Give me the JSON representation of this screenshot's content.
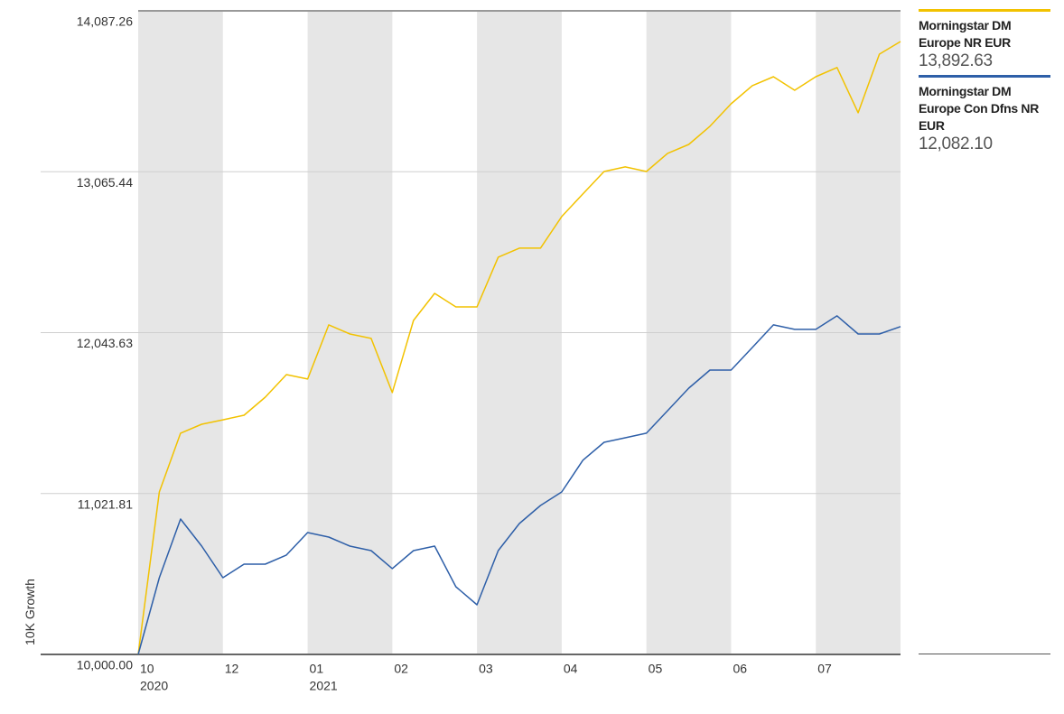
{
  "chart_data": {
    "type": "line",
    "y_axis_label": "10K Growth",
    "categories": [
      "10",
      null,
      null,
      null,
      "12",
      null,
      null,
      null,
      "01",
      null,
      null,
      null,
      "02",
      null,
      null,
      null,
      "03",
      null,
      null,
      null,
      "04",
      null,
      null,
      null,
      "05",
      null,
      null,
      null,
      "06",
      null,
      null,
      null,
      "07",
      null,
      null,
      null,
      null
    ],
    "year_labels": [
      "2020",
      null,
      null,
      null,
      null,
      null,
      null,
      null,
      "2021",
      null,
      null,
      null,
      null,
      null,
      null,
      null,
      null,
      null,
      null,
      null,
      null,
      null,
      null,
      null,
      null,
      null,
      null,
      null,
      null,
      null,
      null,
      null,
      null,
      null,
      null,
      null,
      null
    ],
    "series": [
      {
        "name": "Morningstar DM Europe NR EUR",
        "color": "#f2c200",
        "last_value_label": "13,892.63",
        "values": [
          10000,
          11032,
          11405,
          11462,
          11490,
          11519,
          11634,
          11777,
          11749,
          12093,
          12035,
          12007,
          11663,
          12121,
          12293,
          12207,
          12207,
          12523,
          12580,
          12580,
          12781,
          12924,
          13067,
          13096,
          13067,
          13182,
          13239,
          13354,
          13497,
          13612,
          13669,
          13583,
          13669,
          13727,
          13440,
          13812,
          13892.63
        ]
      },
      {
        "name": "Morningstar DM Europe Con Dfns NR EUR",
        "color": "#2e5fa8",
        "last_value_label": "12,082.10",
        "values": [
          10000,
          10487,
          10860,
          10688,
          10487,
          10573,
          10573,
          10631,
          10774,
          10745,
          10688,
          10659,
          10545,
          10659,
          10688,
          10430,
          10315,
          10659,
          10831,
          10946,
          11032,
          11233,
          11347,
          11376,
          11405,
          11548,
          11691,
          11806,
          11806,
          11949,
          12093,
          12064,
          12064,
          12150,
          12035,
          12035,
          12082.1
        ]
      }
    ],
    "ylim": [
      10000,
      14087.26
    ],
    "yticks": [
      {
        "value": 10000,
        "label": "10,000.00"
      },
      {
        "value": 11021.81,
        "label": "11,021.81"
      },
      {
        "value": 12043.63,
        "label": "12,043.63"
      },
      {
        "value": 13065.44,
        "label": "13,065.44"
      },
      {
        "value": 14087.26,
        "label": "14,087.26"
      }
    ],
    "grid": true,
    "band_shading": "#e6e6e6",
    "legend": "right"
  }
}
